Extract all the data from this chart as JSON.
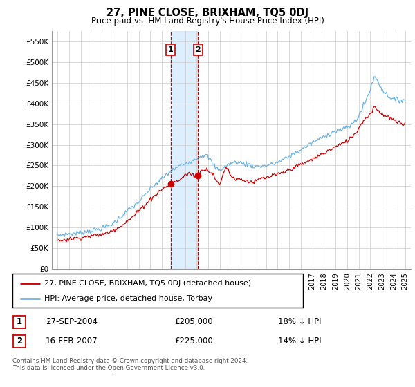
{
  "title": "27, PINE CLOSE, BRIXHAM, TQ5 0DJ",
  "subtitle": "Price paid vs. HM Land Registry's House Price Index (HPI)",
  "ylim": [
    0,
    575000
  ],
  "sale1": {
    "date": 2004.75,
    "price": 205000,
    "label": "1"
  },
  "sale2": {
    "date": 2007.12,
    "price": 225000,
    "label": "2"
  },
  "legend_line1": "27, PINE CLOSE, BRIXHAM, TQ5 0DJ (detached house)",
  "legend_line2": "HPI: Average price, detached house, Torbay",
  "table_row1": [
    "1",
    "27-SEP-2004",
    "£205,000",
    "18% ↓ HPI"
  ],
  "table_row2": [
    "2",
    "16-FEB-2007",
    "£225,000",
    "14% ↓ HPI"
  ],
  "footnote": "Contains HM Land Registry data © Crown copyright and database right 2024.\nThis data is licensed under the Open Government Licence v3.0.",
  "hpi_color": "#6ab4e8",
  "price_color": "#cc0000",
  "highlight_color": "#ddeeff",
  "vline_color": "#cc0000",
  "background_color": "#ffffff",
  "grid_color": "#cccccc",
  "xlim_left": 1994.5,
  "xlim_right": 2025.5
}
